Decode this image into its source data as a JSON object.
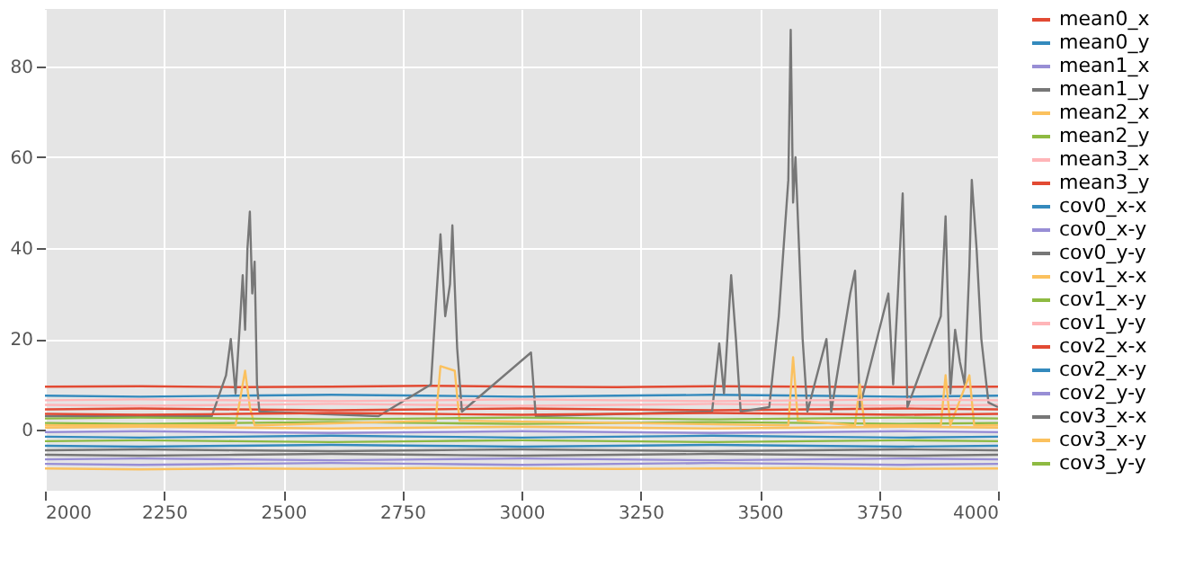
{
  "chart_data": {
    "type": "line",
    "xlim": [
      2000,
      4000
    ],
    "xticks": [
      2000,
      2250,
      2500,
      2750,
      3000,
      3250,
      3500,
      3750,
      4000
    ],
    "ylim": [
      -13.4,
      92.6
    ],
    "yticks": [
      0,
      20,
      40,
      60,
      80
    ],
    "grid": true,
    "legend": "right",
    "x": [
      2000,
      2200,
      2400,
      2600,
      2800,
      3000,
      3200,
      3400,
      3600,
      3800,
      4000
    ],
    "series": [
      {
        "name": "mean0_x",
        "color": "#e24a33",
        "values": [
          4.5,
          4.7,
          4.5,
          4.3,
          4.5,
          4.7,
          4.5,
          4.3,
          4.5,
          4.7,
          4.5
        ]
      },
      {
        "name": "mean0_y",
        "color": "#348abd",
        "values": [
          7.5,
          7.3,
          7.5,
          7.7,
          7.5,
          7.3,
          7.5,
          7.7,
          7.5,
          7.3,
          7.5
        ]
      },
      {
        "name": "mean1_x",
        "color": "#988ed5",
        "values": [
          -0.5,
          -0.3,
          -0.5,
          -0.7,
          -0.5,
          -0.3,
          -0.5,
          -0.7,
          -0.5,
          -0.3,
          -0.5
        ]
      },
      {
        "name": "mean1_y",
        "color": "#777777",
        "values": [
          -5.5,
          -5.7,
          -5.5,
          -5.3,
          -5.5,
          -5.7,
          -5.5,
          -5.3,
          -5.5,
          -5.7,
          -5.5
        ]
      },
      {
        "name": "mean2_x",
        "color": "#fbc15e",
        "values": [
          -8.5,
          -8.7,
          -8.5,
          -8.6,
          -8.4,
          -8.5,
          -8.6,
          -8.5,
          -8.4,
          -8.6,
          -8.5
        ]
      },
      {
        "name": "mean2_y",
        "color": "#8eba42",
        "values": [
          1.5,
          1.3,
          1.5,
          1.7,
          1.5,
          1.3,
          1.5,
          1.7,
          1.5,
          1.3,
          1.5
        ]
      },
      {
        "name": "mean3_x",
        "color": "#ffb5b8",
        "values": [
          5.5,
          5.3,
          5.5,
          5.7,
          5.5,
          5.3,
          5.5,
          5.7,
          5.5,
          5.3,
          5.5
        ]
      },
      {
        "name": "mean3_y",
        "color": "#e24a33",
        "values": [
          9.5,
          9.6,
          9.4,
          9.5,
          9.7,
          9.5,
          9.4,
          9.6,
          9.5,
          9.4,
          9.5
        ]
      },
      {
        "name": "cov0_x-x",
        "color": "#348abd",
        "values": [
          -1.5,
          -1.7,
          -1.5,
          -1.3,
          -1.5,
          -1.7,
          -1.5,
          -1.3,
          -1.5,
          -1.7,
          -1.5
        ]
      },
      {
        "name": "cov0_x-y",
        "color": "#988ed5",
        "values": [
          -6.5,
          -6.3,
          -6.5,
          -6.7,
          -6.5,
          -6.3,
          -6.5,
          -6.7,
          -6.5,
          -6.3,
          -6.5
        ]
      },
      {
        "name": "cov0_y-y",
        "color": "#777777",
        "x": [
          2000,
          2350,
          2380,
          2390,
          2400,
          2410,
          2415,
          2420,
          2425,
          2430,
          2435,
          2440,
          2445,
          2450,
          2700,
          2810,
          2820,
          2830,
          2840,
          2850,
          2855,
          2865,
          2875,
          3020,
          3030,
          3400,
          3415,
          3425,
          3440,
          3450,
          3460,
          3520,
          3540,
          3550,
          3560,
          3565,
          3570,
          3575,
          3590,
          3600,
          3640,
          3650,
          3690,
          3700,
          3710,
          3770,
          3780,
          3790,
          3800,
          3810,
          3880,
          3890,
          3900,
          3910,
          3920,
          3930,
          3940,
          3945,
          3955,
          3965,
          3980,
          4000
        ],
        "values": [
          3,
          3,
          12,
          20,
          8,
          25,
          34,
          22,
          40,
          48,
          30,
          37,
          10,
          4,
          3,
          10,
          27,
          43,
          25,
          32,
          45,
          18,
          4,
          17,
          3,
          4,
          19,
          8,
          34,
          20,
          4,
          5,
          25,
          40,
          55,
          88,
          50,
          60,
          20,
          4,
          20,
          4,
          30,
          35,
          5,
          30,
          10,
          30,
          52,
          5,
          25,
          47,
          8,
          22,
          15,
          10,
          36,
          55,
          40,
          20,
          6,
          5
        ]
      },
      {
        "name": "cov1_x-x",
        "color": "#fbc15e",
        "x": [
          2000,
          2400,
          2420,
          2430,
          2440,
          2820,
          2830,
          2860,
          2870,
          3560,
          3570,
          3580,
          3700,
          3710,
          3720,
          3880,
          3890,
          3900,
          3940,
          3950,
          4000
        ],
        "values": [
          1,
          1,
          13,
          5,
          1,
          2,
          14,
          13,
          2,
          1,
          16,
          2,
          1,
          10,
          1,
          1,
          12,
          1,
          12,
          1,
          1
        ]
      },
      {
        "name": "cov1_x-y",
        "color": "#8eba42",
        "values": [
          -2.5,
          -2.3,
          -2.5,
          -2.7,
          -2.5,
          -2.3,
          -2.5,
          -2.7,
          -2.5,
          -2.3,
          -2.5
        ]
      },
      {
        "name": "cov1_y-y",
        "color": "#ffb5b8",
        "values": [
          6.5,
          6.7,
          6.5,
          6.3,
          6.5,
          6.7,
          6.5,
          6.3,
          6.5,
          6.7,
          6.5
        ]
      },
      {
        "name": "cov2_x-x",
        "color": "#e24a33",
        "values": [
          3.5,
          3.3,
          3.5,
          3.7,
          3.5,
          3.3,
          3.5,
          3.7,
          3.5,
          3.3,
          3.5
        ]
      },
      {
        "name": "cov2_x-y",
        "color": "#348abd",
        "values": [
          -3.5,
          -3.7,
          -3.5,
          -3.3,
          -3.5,
          -3.7,
          -3.5,
          -3.3,
          -3.5,
          -3.7,
          -3.5
        ]
      },
      {
        "name": "cov2_y-y",
        "color": "#988ed5",
        "values": [
          -7.5,
          -7.7,
          -7.5,
          -7.3,
          -7.5,
          -7.7,
          -7.5,
          -7.3,
          -7.5,
          -7.7,
          -7.5
        ]
      },
      {
        "name": "cov3_x-x",
        "color": "#777777",
        "values": [
          -4.5,
          -4.3,
          -4.5,
          -4.7,
          -4.5,
          -4.3,
          -4.5,
          -4.7,
          -4.5,
          -4.3,
          -4.5
        ]
      },
      {
        "name": "cov3_x-y",
        "color": "#fbc15e",
        "values": [
          0.5,
          0.7,
          0.5,
          0.3,
          0.5,
          0.7,
          0.5,
          0.3,
          0.5,
          0.7,
          0.5
        ]
      },
      {
        "name": "cov3_y-y",
        "color": "#8eba42",
        "values": [
          2.5,
          2.7,
          2.5,
          2.3,
          2.5,
          2.7,
          2.5,
          2.3,
          2.5,
          2.7,
          2.5
        ]
      }
    ]
  }
}
